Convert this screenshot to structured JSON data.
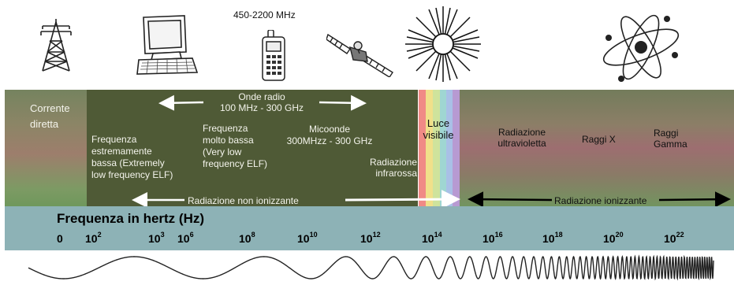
{
  "icons": {
    "pylon": "power-pylon-icon",
    "computer": "computer-icon",
    "phone": "mobile-phone-icon",
    "satellite": "satellite-icon",
    "sun": "sun-icon",
    "atom": "atom-icon"
  },
  "phone_frequency": "450-2200 MHz",
  "regions": {
    "dc": [
      "Corrente",
      "diretta"
    ],
    "radio": [
      "Onde radio",
      "100 MHz - 300 GHz"
    ],
    "elf": [
      "Frequenza",
      "estremamente",
      "bassa (Extremely",
      "low frequency ELF)"
    ],
    "vlf": [
      "Frequenza",
      "molto bassa",
      "(Very low",
      "frequency ELF)"
    ],
    "micro": [
      "Micoonde",
      "300MHzz - 300 GHz"
    ],
    "ir": [
      "Radiazione",
      "infrarossa"
    ],
    "visible": [
      "Luce",
      "visibile"
    ],
    "uv": [
      "Radiazione",
      "ultravioletta"
    ],
    "xray": "Raggi X",
    "gamma": [
      "Raggi",
      "Gamma"
    ],
    "non_ionizing": "Radiazione non ionizzante",
    "ionizing": "Radiazione ionizzante"
  },
  "visible_colors": [
    "#f08a86",
    "#f0e08a",
    "#cfe39c",
    "#9fd6d2",
    "#a9c0e6",
    "#b79ad2"
  ],
  "axis": {
    "title": "Frequenza in hertz (Hz)",
    "ticks": [
      {
        "base": "0",
        "exp": ""
      },
      {
        "base": "10",
        "exp": "2"
      },
      {
        "base": "10",
        "exp": "3"
      },
      {
        "base": "10",
        "exp": "6"
      },
      {
        "base": "10",
        "exp": "8"
      },
      {
        "base": "10",
        "exp": "10"
      },
      {
        "base": "10",
        "exp": "12"
      },
      {
        "base": "10",
        "exp": "14"
      },
      {
        "base": "10",
        "exp": "16"
      },
      {
        "base": "10",
        "exp": "18"
      },
      {
        "base": "10",
        "exp": "20"
      },
      {
        "base": "10",
        "exp": "22"
      }
    ]
  }
}
